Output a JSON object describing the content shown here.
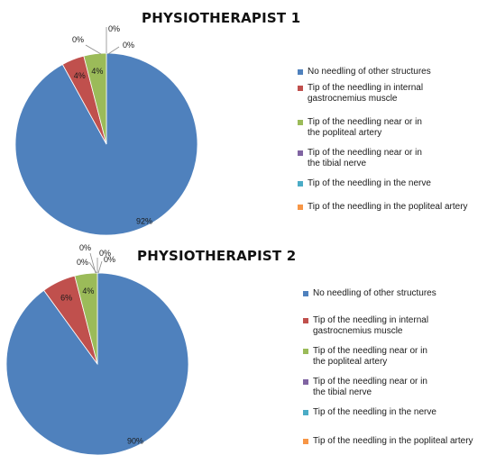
{
  "chart_data": [
    {
      "type": "pie",
      "title": "PHYSIOTHERAPIST 1",
      "legend_position": "right",
      "categories": [
        "No needling of other structures",
        "Tip of the needling in internal gastrocnemius muscle",
        "Tip of the needling near or in the popliteal artery",
        "Tip of the needling near or in the tibial nerve",
        "Tip of the needling in the nerve",
        "Tip of the needling in the popliteal artery"
      ],
      "legend_lines": [
        [
          "No needling of other structures"
        ],
        [
          "Tip of the needling in internal",
          "gastrocnemius muscle"
        ],
        [
          "Tip of the needling near or in",
          "the popliteal artery"
        ],
        [
          "Tip of the needling near or in",
          "the tibial nerve"
        ],
        [
          "Tip of the needling in the nerve"
        ],
        [
          "Tip of the needling in the popliteal artery"
        ]
      ],
      "values": [
        92,
        4,
        4,
        0,
        0,
        0
      ],
      "labels": [
        "92%",
        "4%",
        "4%",
        "0%",
        "0%",
        "0%"
      ],
      "colors": [
        "#4f81bd",
        "#c0504d",
        "#9bbb59",
        "#8064a2",
        "#4bacc6",
        "#f79646"
      ]
    },
    {
      "type": "pie",
      "title": "PHYSIOTHERAPIST 2",
      "legend_position": "right",
      "categories": [
        "No needling of other structures",
        "Tip of the needling in internal gastrocnemius muscle",
        "Tip of the needling near or in the popliteal artery",
        "Tip of the needling near or in the tibial nerve",
        "Tip of the needling in the nerve",
        "Tip of the needling in the popliteal artery"
      ],
      "legend_lines": [
        [
          "No needling of other structures"
        ],
        [
          "Tip of the needling in internal",
          "gastrocnemius muscle"
        ],
        [
          "Tip of the needling near or in",
          "the popliteal artery"
        ],
        [
          "Tip of the needling near or in",
          "the tibial nerve"
        ],
        [
          "Tip of the needling in the nerve"
        ],
        [
          "Tip of the needling in the popliteal artery"
        ]
      ],
      "values": [
        90,
        6,
        4,
        0,
        0,
        0
      ],
      "labels": [
        "90%",
        "6%",
        "4%",
        "0%",
        "0%",
        "0%"
      ],
      "colors": [
        "#4f81bd",
        "#c0504d",
        "#9bbb59",
        "#8064a2",
        "#4bacc6",
        "#f79646"
      ]
    }
  ]
}
